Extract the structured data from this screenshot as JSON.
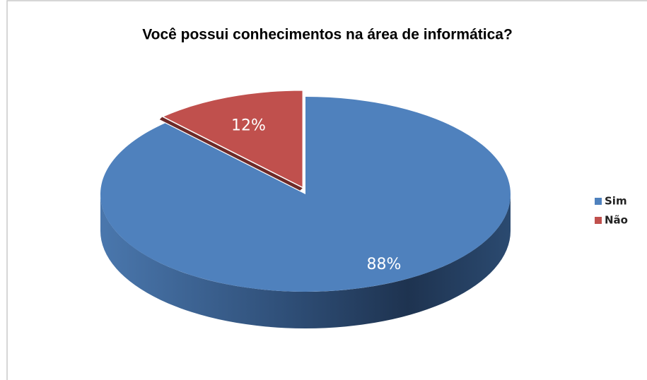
{
  "chart_data": {
    "type": "pie3d",
    "title": "Você possui conhecimentos na área de informática?",
    "categories": [
      "Sim",
      "Não"
    ],
    "values": [
      88,
      12
    ],
    "value_labels": [
      "88%",
      "12%"
    ],
    "colors": [
      "#4f81bd",
      "#c0504d"
    ],
    "legend": "right"
  }
}
